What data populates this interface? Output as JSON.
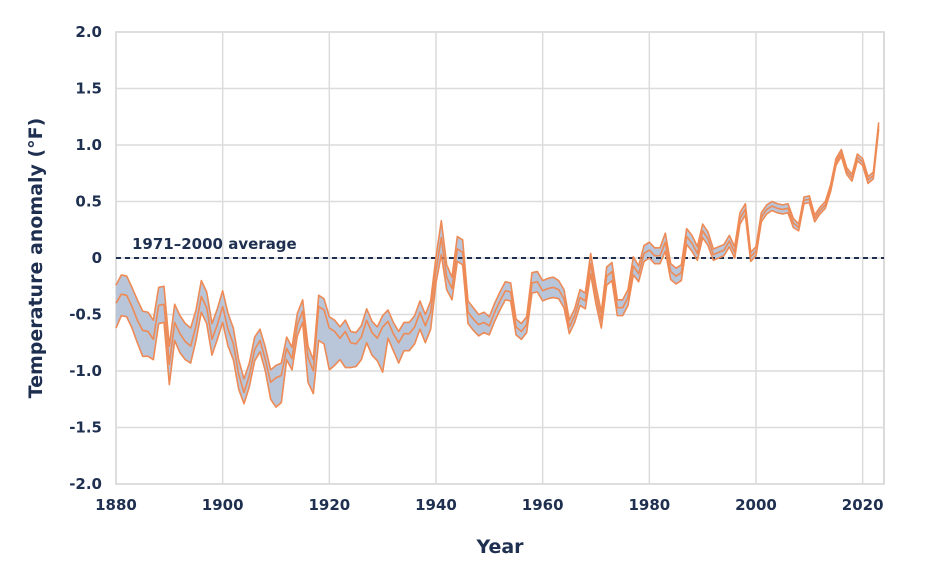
{
  "chart_data": {
    "type": "area",
    "xlabel": "Year",
    "ylabel": "Temperature anomaly (°F)",
    "xlim": [
      1880,
      2024
    ],
    "ylim": [
      -2.0,
      2.0
    ],
    "x_ticks": [
      1880,
      1900,
      1920,
      1940,
      1960,
      1980,
      2000,
      2020
    ],
    "x_tick_labels": [
      "1880",
      "1900",
      "1920",
      "1940",
      "1960",
      "1980",
      "2000",
      "2020"
    ],
    "y_ticks": [
      2.0,
      1.5,
      1.0,
      0.5,
      0,
      -0.5,
      -1.0,
      -1.5,
      -2.0
    ],
    "y_tick_labels": [
      "2.0",
      "1.5",
      "1.0",
      "0.5",
      "0",
      "-0.5",
      "-1.0",
      "-1.5",
      "-2.0"
    ],
    "grid": true,
    "reference_line": {
      "value": 0,
      "label": "1971–2000 average"
    },
    "x": [
      1880,
      1881,
      1882,
      1883,
      1884,
      1885,
      1886,
      1887,
      1888,
      1889,
      1890,
      1891,
      1892,
      1893,
      1894,
      1895,
      1896,
      1897,
      1898,
      1899,
      1900,
      1901,
      1902,
      1903,
      1904,
      1905,
      1906,
      1907,
      1908,
      1909,
      1910,
      1911,
      1912,
      1913,
      1914,
      1915,
      1916,
      1917,
      1918,
      1919,
      1920,
      1921,
      1922,
      1923,
      1924,
      1925,
      1926,
      1927,
      1928,
      1929,
      1930,
      1931,
      1932,
      1933,
      1934,
      1935,
      1936,
      1937,
      1938,
      1939,
      1940,
      1941,
      1942,
      1943,
      1944,
      1945,
      1946,
      1947,
      1948,
      1949,
      1950,
      1951,
      1952,
      1953,
      1954,
      1955,
      1956,
      1957,
      1958,
      1959,
      1960,
      1961,
      1962,
      1963,
      1964,
      1965,
      1966,
      1967,
      1968,
      1969,
      1970,
      1971,
      1972,
      1973,
      1974,
      1975,
      1976,
      1977,
      1978,
      1979,
      1980,
      1981,
      1982,
      1983,
      1984,
      1985,
      1986,
      1987,
      1988,
      1989,
      1990,
      1991,
      1992,
      1993,
      1994,
      1995,
      1996,
      1997,
      1998,
      1999,
      2000,
      2001,
      2002,
      2003,
      2004,
      2005,
      2006,
      2007,
      2008,
      2009,
      2010,
      2011,
      2012,
      2013,
      2014,
      2015,
      2016,
      2017,
      2018,
      2019,
      2020,
      2021,
      2022,
      2023
    ],
    "series": [
      {
        "values": [
          -0.24,
          -0.15,
          -0.16,
          -0.26,
          -0.37,
          -0.47,
          -0.48,
          -0.55,
          -0.26,
          -0.25,
          -0.78,
          -0.41,
          -0.51,
          -0.58,
          -0.62,
          -0.46,
          -0.2,
          -0.3,
          -0.58,
          -0.45,
          -0.29,
          -0.49,
          -0.62,
          -0.9,
          -1.07,
          -0.93,
          -0.7,
          -0.63,
          -0.79,
          -0.99,
          -0.95,
          -0.93,
          -0.7,
          -0.79,
          -0.49,
          -0.37,
          -0.78,
          -0.9,
          -0.33,
          -0.36,
          -0.52,
          -0.55,
          -0.61,
          -0.55,
          -0.65,
          -0.66,
          -0.6,
          -0.45,
          -0.56,
          -0.61,
          -0.51,
          -0.46,
          -0.57,
          -0.65,
          -0.57,
          -0.57,
          -0.51,
          -0.38,
          -0.5,
          -0.38,
          0.01,
          0.33,
          -0.06,
          -0.17,
          0.19,
          0.16,
          -0.38,
          -0.44,
          -0.5,
          -0.48,
          -0.52,
          -0.4,
          -0.3,
          -0.21,
          -0.22,
          -0.54,
          -0.58,
          -0.52,
          -0.13,
          -0.12,
          -0.2,
          -0.18,
          -0.17,
          -0.2,
          -0.28,
          -0.55,
          -0.45,
          -0.28,
          -0.31,
          0.04,
          -0.25,
          -0.48,
          -0.08,
          -0.04,
          -0.37,
          -0.37,
          -0.28,
          0.01,
          -0.07,
          0.11,
          0.14,
          0.09,
          0.09,
          0.22,
          -0.05,
          -0.09,
          -0.06,
          0.26,
          0.2,
          0.1,
          0.3,
          0.23,
          0.08,
          0.1,
          0.12,
          0.2,
          0.1,
          0.4,
          0.48,
          0.05,
          0.1,
          0.4,
          0.47,
          0.5,
          0.48,
          0.47,
          0.48,
          0.35,
          0.3,
          0.54,
          0.55,
          0.38,
          0.45,
          0.5,
          0.65,
          0.88,
          0.96,
          0.8,
          0.74,
          0.92,
          0.88,
          0.72,
          0.76,
          1.2
        ]
      },
      {
        "values": [
          -0.4,
          -0.32,
          -0.33,
          -0.43,
          -0.55,
          -0.64,
          -0.65,
          -0.72,
          -0.42,
          -0.41,
          -0.94,
          -0.57,
          -0.67,
          -0.74,
          -0.78,
          -0.6,
          -0.34,
          -0.44,
          -0.72,
          -0.59,
          -0.43,
          -0.63,
          -0.76,
          -1.03,
          -1.19,
          -1.04,
          -0.81,
          -0.73,
          -0.9,
          -1.1,
          -1.06,
          -1.04,
          -0.8,
          -0.89,
          -0.59,
          -0.47,
          -0.88,
          -1.0,
          -0.43,
          -0.46,
          -0.62,
          -0.65,
          -0.71,
          -0.65,
          -0.75,
          -0.76,
          -0.7,
          -0.55,
          -0.66,
          -0.71,
          -0.61,
          -0.56,
          -0.67,
          -0.75,
          -0.67,
          -0.67,
          -0.61,
          -0.48,
          -0.6,
          -0.48,
          -0.11,
          0.18,
          -0.17,
          -0.27,
          0.08,
          0.05,
          -0.48,
          -0.54,
          -0.59,
          -0.57,
          -0.6,
          -0.48,
          -0.38,
          -0.29,
          -0.3,
          -0.61,
          -0.65,
          -0.59,
          -0.22,
          -0.21,
          -0.29,
          -0.27,
          -0.26,
          -0.28,
          -0.36,
          -0.61,
          -0.51,
          -0.35,
          -0.38,
          -0.05,
          -0.33,
          -0.55,
          -0.16,
          -0.12,
          -0.44,
          -0.44,
          -0.35,
          -0.07,
          -0.14,
          0.04,
          0.07,
          0.02,
          0.02,
          0.14,
          -0.12,
          -0.16,
          -0.13,
          0.19,
          0.13,
          0.04,
          0.24,
          0.17,
          0.03,
          0.05,
          0.07,
          0.15,
          0.05,
          0.35,
          0.43,
          0.01,
          0.06,
          0.36,
          0.43,
          0.46,
          0.44,
          0.43,
          0.44,
          0.31,
          0.27,
          0.51,
          0.52,
          0.35,
          0.42,
          0.47,
          0.62,
          0.85,
          0.93,
          0.77,
          0.71,
          0.89,
          0.85,
          0.69,
          0.73,
          1.17
        ]
      },
      {
        "values": [
          -0.62,
          -0.51,
          -0.52,
          -0.62,
          -0.75,
          -0.87,
          -0.87,
          -0.9,
          -0.58,
          -0.57,
          -1.12,
          -0.73,
          -0.84,
          -0.9,
          -0.93,
          -0.73,
          -0.48,
          -0.58,
          -0.86,
          -0.72,
          -0.57,
          -0.78,
          -0.9,
          -1.16,
          -1.29,
          -1.14,
          -0.91,
          -0.83,
          -1.0,
          -1.25,
          -1.32,
          -1.28,
          -0.9,
          -0.99,
          -0.69,
          -0.57,
          -1.1,
          -1.2,
          -0.73,
          -0.76,
          -0.99,
          -0.95,
          -0.9,
          -0.97,
          -0.97,
          -0.96,
          -0.9,
          -0.75,
          -0.86,
          -0.91,
          -1.01,
          -0.71,
          -0.82,
          -0.93,
          -0.82,
          -0.82,
          -0.76,
          -0.63,
          -0.75,
          -0.63,
          -0.22,
          0.03,
          -0.28,
          -0.37,
          -0.03,
          -0.06,
          -0.58,
          -0.64,
          -0.69,
          -0.66,
          -0.68,
          -0.56,
          -0.46,
          -0.37,
          -0.38,
          -0.68,
          -0.72,
          -0.66,
          -0.31,
          -0.3,
          -0.38,
          -0.36,
          -0.35,
          -0.36,
          -0.44,
          -0.67,
          -0.57,
          -0.42,
          -0.45,
          -0.14,
          -0.41,
          -0.62,
          -0.24,
          -0.2,
          -0.51,
          -0.51,
          -0.42,
          -0.15,
          -0.21,
          -0.03,
          0.0,
          -0.05,
          -0.05,
          0.06,
          -0.19,
          -0.23,
          -0.2,
          0.12,
          0.06,
          -0.02,
          0.18,
          0.11,
          -0.02,
          0.0,
          0.02,
          0.1,
          0.0,
          0.3,
          0.38,
          -0.03,
          0.02,
          0.32,
          0.39,
          0.42,
          0.4,
          0.39,
          0.4,
          0.27,
          0.24,
          0.48,
          0.49,
          0.32,
          0.39,
          0.44,
          0.59,
          0.82,
          0.9,
          0.74,
          0.68,
          0.86,
          0.82,
          0.66,
          0.7,
          1.14
        ]
      }
    ]
  },
  "colors": {
    "band_fill": "#b9c5d8",
    "line": "#ee8a55",
    "grid": "#dcdcdc",
    "axis": "#cfcfcf",
    "reference": "#1e2f4f",
    "text": "#1e2f4f"
  }
}
